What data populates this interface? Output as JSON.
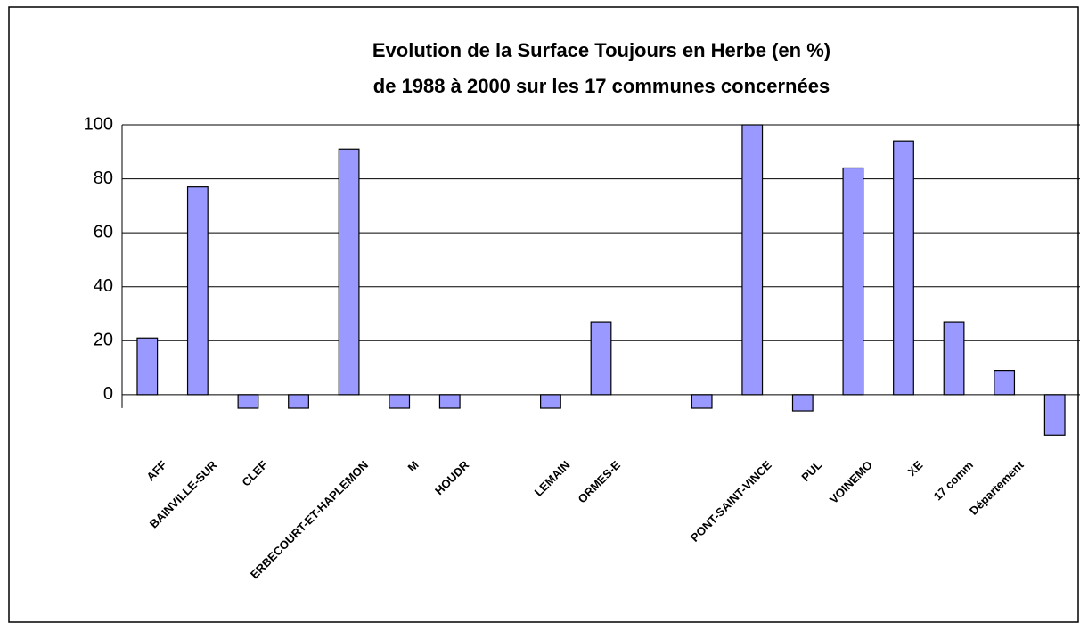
{
  "chart_data": {
    "type": "bar",
    "title": [
      "Evolution de la Surface Toujours en Herbe (en %)",
      "de 1988 à 2000  sur les 17 communes concernées"
    ],
    "categories": [
      "AFF",
      "BAINVILLE-SUR",
      "CLEF",
      null,
      "ERBECOURT-ET-HAPLEMON",
      "M",
      "HOUDR",
      null,
      "LEMAIN",
      "ORMES-E",
      null,
      null,
      "PONT-SAINT-VINCE",
      "PUL",
      "VOINEMO",
      "XE",
      "17 comm",
      "Département",
      null
    ],
    "values": [
      21,
      77,
      -5,
      -5,
      91,
      -5,
      -5,
      0,
      -5,
      27,
      0,
      -5,
      100,
      -6,
      84,
      94,
      27,
      9,
      -15
    ],
    "color": "#9999ff",
    "ylim": [
      -40,
      100
    ],
    "yticks": [
      0,
      20,
      40,
      60,
      80,
      100
    ],
    "grid": true
  }
}
